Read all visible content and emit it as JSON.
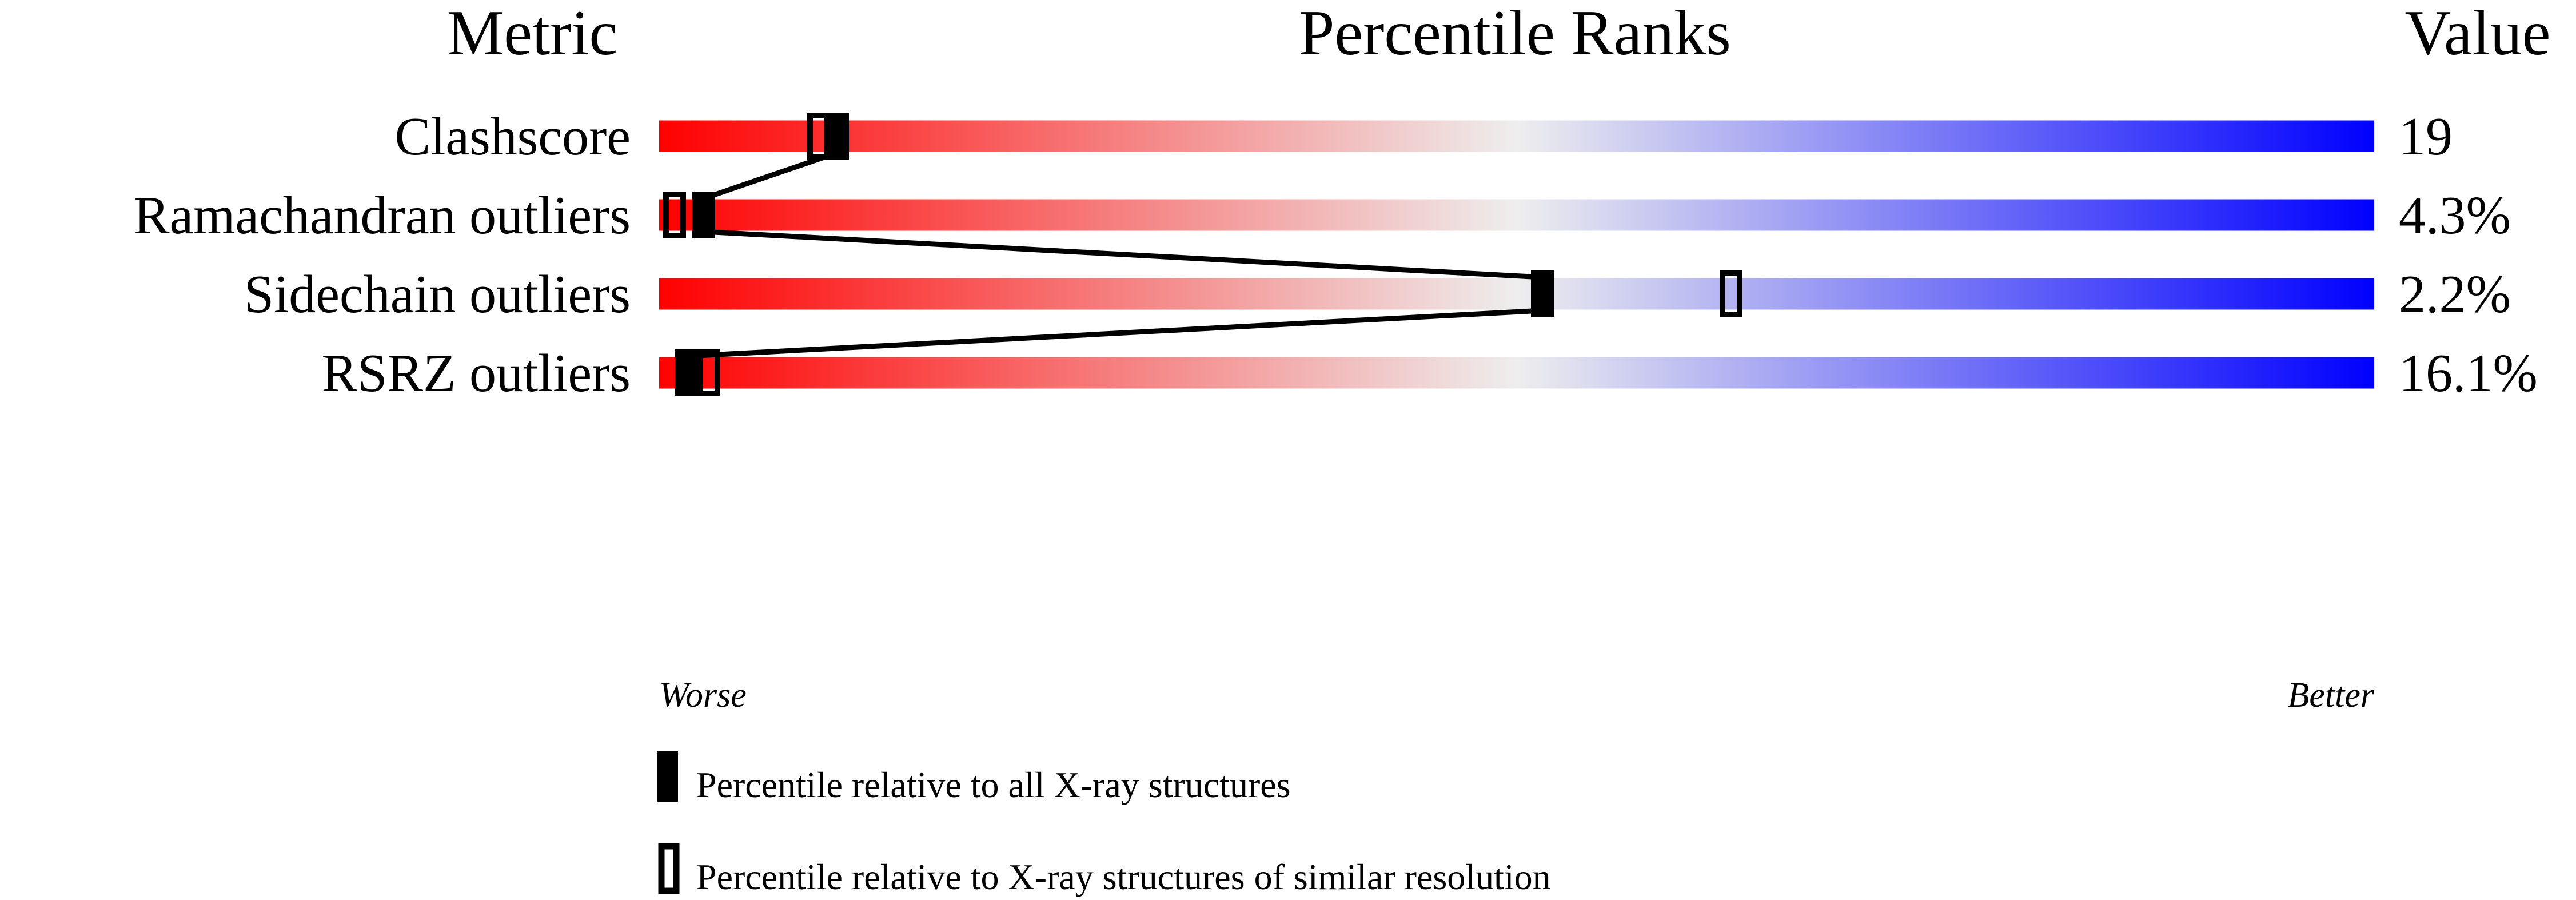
{
  "chart_data": {
    "type": "percentile-slider",
    "headers": {
      "metric": "Metric",
      "ranks": "Percentile Ranks",
      "value": "Value"
    },
    "xlim": [
      0,
      100
    ],
    "gradient_colors": [
      "#ff0000",
      "#eeeeee",
      "#0000ff"
    ],
    "axis_labels": {
      "left": "Worse",
      "right": "Better"
    },
    "rows": [
      {
        "metric": "Clashscore",
        "value": "19",
        "percentile_all": 10.4,
        "percentile_similar": 9.3
      },
      {
        "metric": "Ramachandran outliers",
        "value": "4.3%",
        "percentile_all": 2.6,
        "percentile_similar": 0.9
      },
      {
        "metric": "Sidechain outliers",
        "value": "2.2%",
        "percentile_all": 51.5,
        "percentile_similar": 62.5
      },
      {
        "metric": "RSRZ outliers",
        "value": "16.1%",
        "percentile_all": 1.6,
        "percentile_similar": 2.9
      }
    ],
    "legend": [
      {
        "marker": "filled",
        "label": "Percentile relative to all X-ray structures"
      },
      {
        "marker": "open",
        "label": "Percentile relative to X-ray structures of similar resolution"
      }
    ]
  }
}
